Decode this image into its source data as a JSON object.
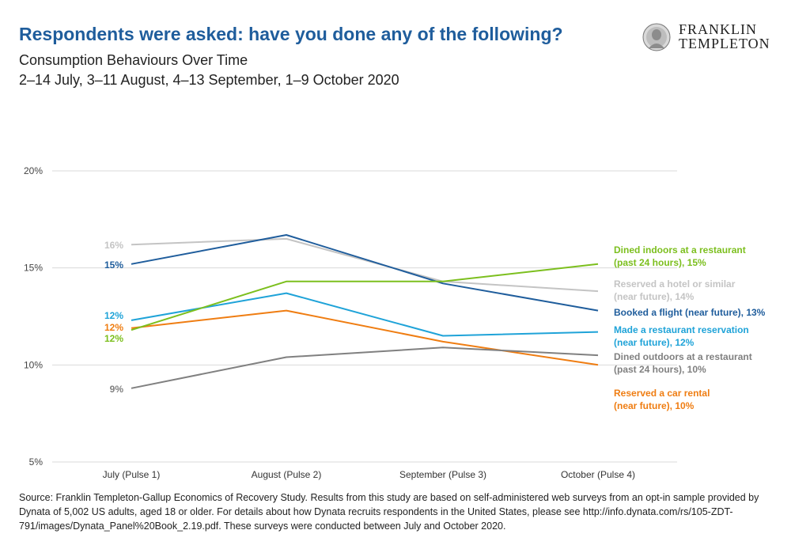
{
  "header": {
    "title": "Respondents were asked: have you done any of the following?",
    "subtitle": "Consumption Behaviours Over Time",
    "dates": "2–14 July, 3–11 August, 4–13 September, 1–9 October 2020"
  },
  "logo": {
    "line1": "FRANKLIN",
    "line2": "TEMPLETON"
  },
  "footer": {
    "source": "Source: Franklin Templeton-Gallup Economics of Recovery Study. Results from this study are based on self-administered web surveys from an opt-in sample provided by Dynata of 5,002 US adults, aged 18 or older. For details about how Dynata recruits respondents in the United States, please see http://info.dynata.com/rs/105-ZDT-791/images/Dynata_Panel%20Book_2.19.pdf. These surveys were conducted between July and October 2020."
  },
  "chart_data": {
    "type": "line",
    "categories": [
      "July (Pulse 1)",
      "August (Pulse 2)",
      "September (Pulse 3)",
      "October (Pulse 4)"
    ],
    "ylim": [
      5,
      20
    ],
    "yticks": [
      5,
      10,
      15,
      20
    ],
    "ytick_labels": [
      "5%",
      "10%",
      "15%",
      "20%"
    ],
    "grid": true,
    "series": [
      {
        "name": "Reserved a hotel or similar (near future), 14%",
        "color": "#c4c4c4",
        "values": [
          16.2,
          16.5,
          14.3,
          13.8
        ],
        "start_label": "16%",
        "end_label_lines": [
          "Reserved a hotel or similar",
          "(near future), 14%"
        ]
      },
      {
        "name": "Booked a flight (near future), 13%",
        "color": "#1f5d9c",
        "values": [
          15.2,
          16.7,
          14.2,
          12.8
        ],
        "start_label": "15%",
        "end_label_lines": [
          "Booked a flight (near future), 13%"
        ]
      },
      {
        "name": "Made a restaurant reservation (near future), 12%",
        "color": "#1fa3d8",
        "values": [
          12.3,
          13.7,
          11.5,
          11.7
        ],
        "start_label": "12%",
        "end_label_lines": [
          "Made a restaurant reservation",
          "(near future), 12%"
        ]
      },
      {
        "name": "Reserved a car rental (near future), 10%",
        "color": "#ef7d12",
        "values": [
          11.9,
          12.8,
          11.2,
          10.0
        ],
        "start_label": "12%",
        "end_label_lines": [
          "Reserved a car rental",
          "(near future), 10%"
        ]
      },
      {
        "name": "Dined indoors at a restaurant (past 24 hours), 15%",
        "color": "#7cbf1e",
        "values": [
          11.8,
          14.3,
          14.3,
          15.2
        ],
        "start_label": "12%",
        "end_label_lines": [
          "Dined indoors at a restaurant",
          "(past 24 hours), 15%"
        ]
      },
      {
        "name": "Dined outdoors at a restaurant (past 24 hours), 10%",
        "color": "#808080",
        "values": [
          8.8,
          10.4,
          10.9,
          10.5
        ],
        "start_label": "9%",
        "end_label_lines": [
          "Dined outdoors at a restaurant",
          "(past 24 hours), 10%"
        ]
      }
    ]
  }
}
